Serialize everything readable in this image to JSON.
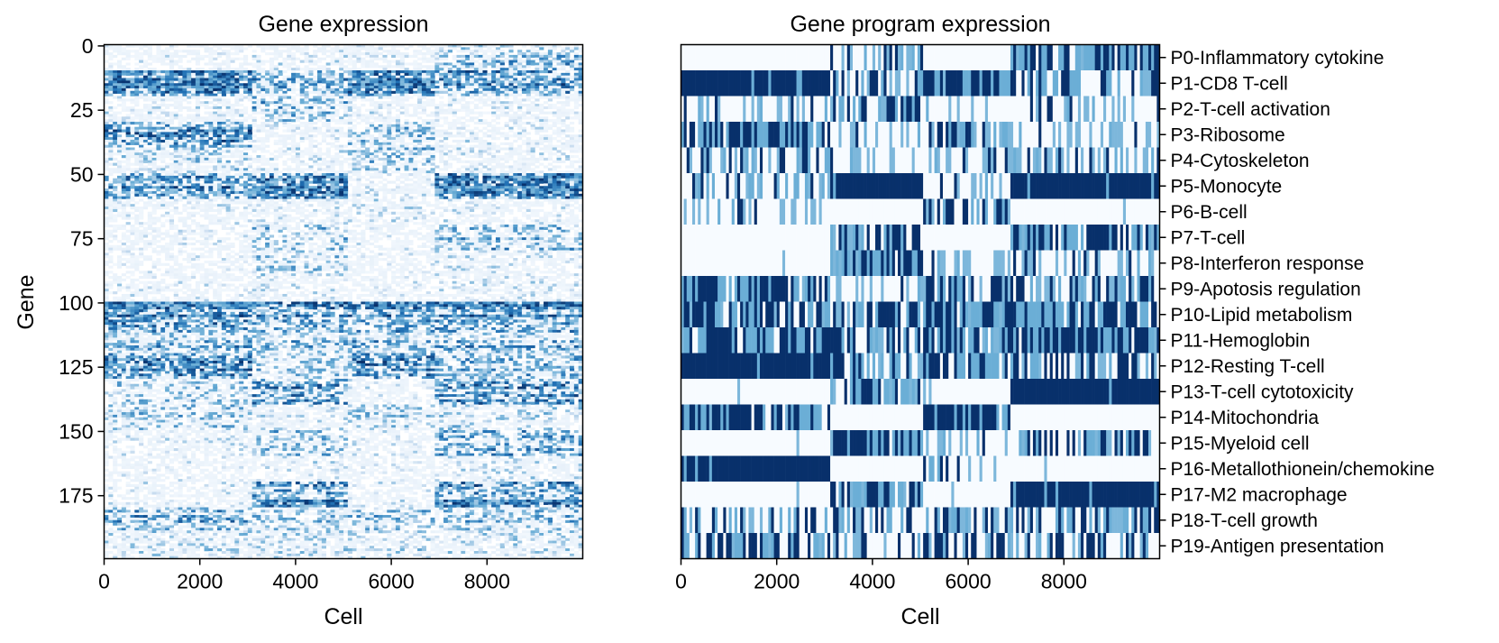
{
  "chart_data": [
    {
      "type": "heatmap",
      "title": "Gene expression",
      "xlabel": "Cell",
      "ylabel": "Gene",
      "xlim": [
        0,
        10000
      ],
      "ylim": [
        200,
        0
      ],
      "x_ticks": [
        0,
        2000,
        4000,
        6000,
        8000
      ],
      "y_ticks": [
        0,
        25,
        50,
        75,
        100,
        125,
        150,
        175
      ],
      "colormap": [
        "#f7fbff",
        "#c6dbef",
        "#6baed6",
        "#2171b5",
        "#08306b"
      ],
      "cell_group_bounds": [
        0,
        3100,
        5050,
        6900,
        10000
      ],
      "gene_blocks": [
        {
          "rows": [
            0,
            10
          ],
          "levels": [
            0.05,
            0.1,
            0.1,
            0.4
          ]
        },
        {
          "rows": [
            10,
            20
          ],
          "levels": [
            0.85,
            0.45,
            0.85,
            0.55
          ]
        },
        {
          "rows": [
            20,
            30
          ],
          "levels": [
            0.1,
            0.35,
            0.1,
            0.1
          ]
        },
        {
          "rows": [
            30,
            40
          ],
          "levels": [
            0.6,
            0.1,
            0.35,
            0.1
          ]
        },
        {
          "rows": [
            40,
            50
          ],
          "levels": [
            0.25,
            0.1,
            0.3,
            0.1
          ]
        },
        {
          "rows": [
            50,
            60
          ],
          "levels": [
            0.55,
            0.8,
            0.1,
            0.85
          ]
        },
        {
          "rows": [
            60,
            70
          ],
          "levels": [
            0.1,
            0.1,
            0.15,
            0.1
          ]
        },
        {
          "rows": [
            70,
            80
          ],
          "levels": [
            0.08,
            0.4,
            0.05,
            0.45
          ]
        },
        {
          "rows": [
            80,
            90
          ],
          "levels": [
            0.05,
            0.3,
            0.05,
            0.15
          ]
        },
        {
          "rows": [
            90,
            100
          ],
          "levels": [
            0.08,
            0.1,
            0.05,
            0.1
          ]
        },
        {
          "rows": [
            100,
            110
          ],
          "levels": [
            0.85,
            0.65,
            0.7,
            0.75
          ]
        },
        {
          "rows": [
            110,
            120
          ],
          "levels": [
            0.45,
            0.4,
            0.45,
            0.45
          ]
        },
        {
          "rows": [
            120,
            130
          ],
          "levels": [
            0.85,
            0.4,
            0.85,
            0.55
          ]
        },
        {
          "rows": [
            130,
            140
          ],
          "levels": [
            0.3,
            0.55,
            0.1,
            0.6
          ]
        },
        {
          "rows": [
            140,
            150
          ],
          "levels": [
            0.35,
            0.15,
            0.3,
            0.25
          ]
        },
        {
          "rows": [
            150,
            160
          ],
          "levels": [
            0.1,
            0.35,
            0.1,
            0.45
          ]
        },
        {
          "rows": [
            160,
            170
          ],
          "levels": [
            0.05,
            0.1,
            0.05,
            0.15
          ]
        },
        {
          "rows": [
            170,
            180
          ],
          "levels": [
            0.1,
            0.75,
            0.1,
            0.75
          ]
        },
        {
          "rows": [
            180,
            190
          ],
          "levels": [
            0.45,
            0.3,
            0.35,
            0.35
          ]
        },
        {
          "rows": [
            190,
            200
          ],
          "levels": [
            0.2,
            0.2,
            0.2,
            0.2
          ]
        }
      ]
    },
    {
      "type": "heatmap",
      "title": "Gene program expression",
      "xlabel": "Cell",
      "ylabel": "",
      "xlim": [
        0,
        10000
      ],
      "x_ticks": [
        0,
        2000,
        4000,
        6000,
        8000
      ],
      "colormap": [
        "#f7fbff",
        "#c6dbef",
        "#6baed6",
        "#2171b5",
        "#08306b"
      ],
      "cell_group_bounds": [
        0,
        3100,
        5050,
        6900,
        10000
      ],
      "programs": [
        {
          "label": "P0-Inflammatory cytokine",
          "levels": [
            0.0,
            0.4,
            0.0,
            0.85
          ]
        },
        {
          "label": "P1-CD8 T-cell",
          "levels": [
            1.0,
            0.5,
            0.9,
            0.5
          ]
        },
        {
          "label": "P2-T-cell activation",
          "levels": [
            0.1,
            0.7,
            0.05,
            0.1
          ]
        },
        {
          "label": "P3-Ribosome",
          "levels": [
            0.9,
            0.05,
            0.4,
            0.1
          ]
        },
        {
          "label": "P4-Cytoskeleton",
          "levels": [
            0.3,
            0.05,
            0.3,
            0.3
          ]
        },
        {
          "label": "P5-Monocyte",
          "levels": [
            0.25,
            1.0,
            0.1,
            1.0
          ]
        },
        {
          "label": "P6-B-cell",
          "levels": [
            0.15,
            0.0,
            0.6,
            0.0
          ]
        },
        {
          "label": "P7-T-cell",
          "levels": [
            0.0,
            0.5,
            0.0,
            0.75
          ]
        },
        {
          "label": "P8-Interferon response",
          "levels": [
            0.0,
            0.8,
            0.1,
            0.2
          ]
        },
        {
          "label": "P9-Apotosis regulation",
          "levels": [
            0.9,
            0.2,
            0.3,
            0.4
          ]
        },
        {
          "label": "P10-Lipid metabolism",
          "levels": [
            0.8,
            0.6,
            0.75,
            0.9
          ]
        },
        {
          "label": "P11-Hemoglobin",
          "levels": [
            0.8,
            0.6,
            0.75,
            0.9
          ]
        },
        {
          "label": "P12-Resting T-cell",
          "levels": [
            1.0,
            0.5,
            0.9,
            0.5
          ]
        },
        {
          "label": "P13-T-cell cytotoxicity",
          "levels": [
            0.0,
            0.7,
            0.0,
            1.0
          ]
        },
        {
          "label": "P14-Mitochondria",
          "levels": [
            0.9,
            0.0,
            0.9,
            0.0
          ]
        },
        {
          "label": "P15-Myeloid cell",
          "levels": [
            0.0,
            0.85,
            0.05,
            0.5
          ]
        },
        {
          "label": "P16-Metallothionein/chemokine",
          "levels": [
            1.0,
            0.0,
            0.3,
            0.0
          ]
        },
        {
          "label": "P17-M2 macrophage",
          "levels": [
            0.0,
            0.7,
            0.0,
            0.95
          ]
        },
        {
          "label": "P18-T-cell growth",
          "levels": [
            0.4,
            0.5,
            0.4,
            0.5
          ]
        },
        {
          "label": "P19-Antigen presentation",
          "levels": [
            0.7,
            0.2,
            0.5,
            0.4
          ]
        }
      ]
    }
  ]
}
